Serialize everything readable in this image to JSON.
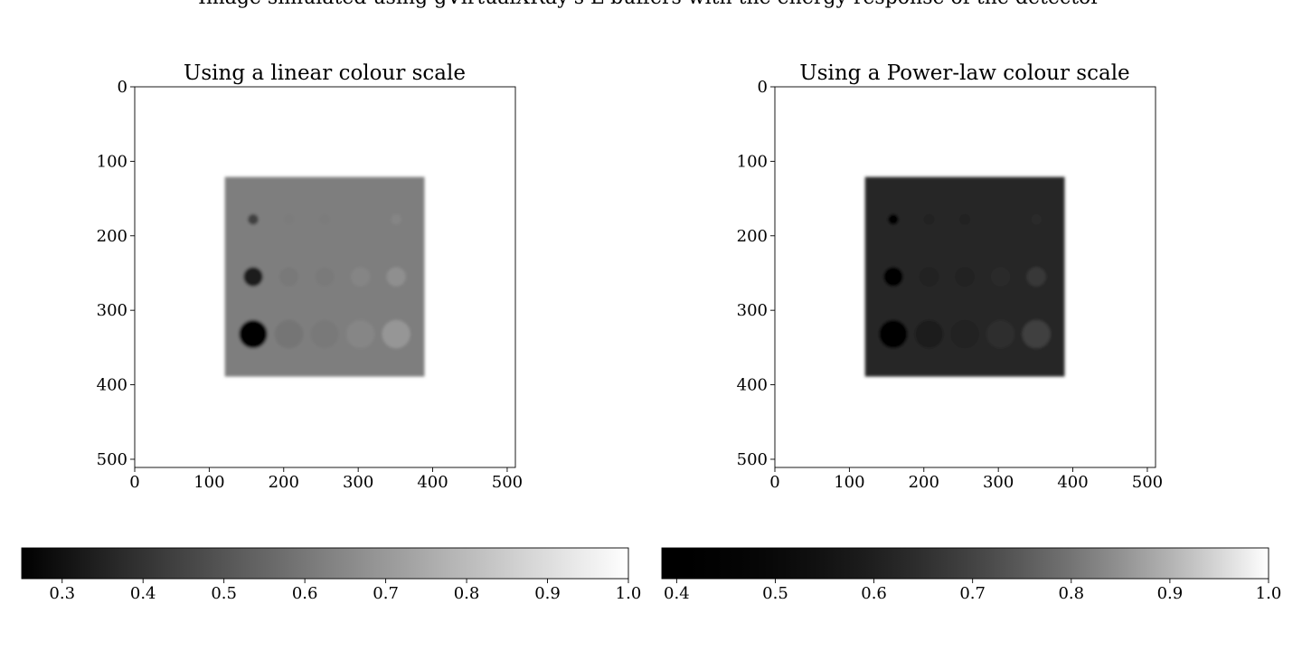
{
  "figure": {
    "suptitle": "Image simulated using gVirtualXRay's L-buffers with the energy response of the detector"
  },
  "chart_data": [
    {
      "type": "heatmap",
      "title": "Using a linear colour scale",
      "colour_scale": "linear",
      "colormap": "gray",
      "xlim": [
        0,
        511
      ],
      "ylim": [
        511,
        0
      ],
      "xticks": [
        "0",
        "100",
        "200",
        "300",
        "400",
        "500"
      ],
      "yticks": [
        "0",
        "100",
        "200",
        "300",
        "400",
        "500"
      ],
      "background_value": 1.0,
      "phantom": {
        "x0": 121,
        "y0": 121,
        "x1": 389,
        "y1": 389,
        "value": 0.62
      },
      "inserts": [
        {
          "cx": 159,
          "cy": 178,
          "r": 7,
          "value": 0.44
        },
        {
          "cx": 207,
          "cy": 178,
          "r": 7,
          "value": 0.615
        },
        {
          "cx": 255,
          "cy": 178,
          "r": 7,
          "value": 0.615
        },
        {
          "cx": 303,
          "cy": 178,
          "r": 7,
          "value": 0.62
        },
        {
          "cx": 351,
          "cy": 178,
          "r": 7,
          "value": 0.64
        },
        {
          "cx": 159,
          "cy": 255,
          "r": 13,
          "value": 0.34
        },
        {
          "cx": 207,
          "cy": 255,
          "r": 13,
          "value": 0.605
        },
        {
          "cx": 255,
          "cy": 255,
          "r": 13,
          "value": 0.61
        },
        {
          "cx": 303,
          "cy": 255,
          "r": 13,
          "value": 0.64
        },
        {
          "cx": 351,
          "cy": 255,
          "r": 13,
          "value": 0.67
        },
        {
          "cx": 159,
          "cy": 332,
          "r": 19,
          "value": 0.25
        },
        {
          "cx": 207,
          "cy": 332,
          "r": 19,
          "value": 0.595
        },
        {
          "cx": 255,
          "cy": 332,
          "r": 19,
          "value": 0.605
        },
        {
          "cx": 303,
          "cy": 332,
          "r": 19,
          "value": 0.645
        },
        {
          "cx": 351,
          "cy": 332,
          "r": 19,
          "value": 0.69
        }
      ],
      "colorbar": {
        "vmin": 0.25,
        "vmax": 1.0,
        "gamma": 1.0,
        "ticks": [
          0.3,
          0.4,
          0.5,
          0.6,
          0.7,
          0.8,
          0.9,
          1.0
        ],
        "tick_labels": [
          "0.3",
          "0.4",
          "0.5",
          "0.6",
          "0.7",
          "0.8",
          "0.9",
          "1.0"
        ]
      }
    },
    {
      "type": "heatmap",
      "title": "Using a Power-law colour scale",
      "colour_scale": "power-law",
      "colormap": "gray",
      "xlim": [
        0,
        511
      ],
      "ylim": [
        511,
        0
      ],
      "xticks": [
        "0",
        "100",
        "200",
        "300",
        "400",
        "500"
      ],
      "yticks": [
        "0",
        "100",
        "200",
        "300",
        "400",
        "500"
      ],
      "background_value": 1.0,
      "phantom": {
        "x0": 121,
        "y0": 121,
        "x1": 389,
        "y1": 389,
        "value": 0.62
      },
      "inserts": [
        {
          "cx": 159,
          "cy": 178,
          "r": 7,
          "value": 0.44
        },
        {
          "cx": 207,
          "cy": 178,
          "r": 7,
          "value": 0.615
        },
        {
          "cx": 255,
          "cy": 178,
          "r": 7,
          "value": 0.615
        },
        {
          "cx": 303,
          "cy": 178,
          "r": 7,
          "value": 0.62
        },
        {
          "cx": 351,
          "cy": 178,
          "r": 7,
          "value": 0.64
        },
        {
          "cx": 159,
          "cy": 255,
          "r": 13,
          "value": 0.34
        },
        {
          "cx": 207,
          "cy": 255,
          "r": 13,
          "value": 0.605
        },
        {
          "cx": 255,
          "cy": 255,
          "r": 13,
          "value": 0.61
        },
        {
          "cx": 303,
          "cy": 255,
          "r": 13,
          "value": 0.64
        },
        {
          "cx": 351,
          "cy": 255,
          "r": 13,
          "value": 0.67
        },
        {
          "cx": 159,
          "cy": 332,
          "r": 19,
          "value": 0.25
        },
        {
          "cx": 207,
          "cy": 332,
          "r": 19,
          "value": 0.595
        },
        {
          "cx": 255,
          "cy": 332,
          "r": 19,
          "value": 0.605
        },
        {
          "cx": 303,
          "cy": 332,
          "r": 19,
          "value": 0.645
        },
        {
          "cx": 351,
          "cy": 332,
          "r": 19,
          "value": 0.69
        }
      ],
      "colorbar": {
        "vmin": 0.385,
        "vmax": 1.0,
        "gamma": 2.0,
        "ticks": [
          0.4,
          0.5,
          0.6,
          0.7,
          0.8,
          0.9,
          1.0
        ],
        "tick_labels": [
          "0.4",
          "0.5",
          "0.6",
          "0.7",
          "0.8",
          "0.9",
          "1.0"
        ]
      }
    }
  ]
}
